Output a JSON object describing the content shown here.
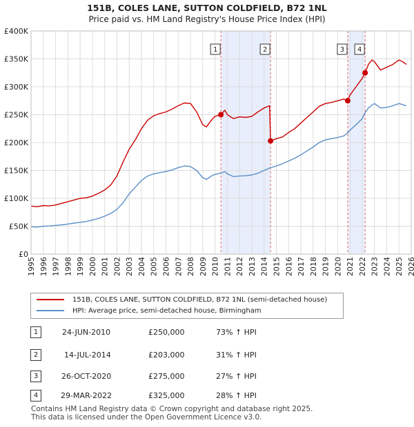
{
  "chart_data": {
    "type": "line",
    "title": "151B, COLES LANE, SUTTON COLDFIELD, B72 1NL",
    "subtitle": "Price paid vs. HM Land Registry's House Price Index (HPI)",
    "xlabel": "",
    "ylabel": "",
    "xlim": [
      1995,
      2026
    ],
    "ylim": [
      0,
      400000
    ],
    "x_ticks": [
      "1995",
      "1996",
      "1997",
      "1998",
      "1999",
      "2000",
      "2001",
      "2002",
      "2003",
      "2004",
      "2005",
      "2006",
      "2007",
      "2008",
      "2009",
      "2010",
      "2011",
      "2012",
      "2013",
      "2014",
      "2015",
      "2016",
      "2017",
      "2018",
      "2019",
      "2020",
      "2021",
      "2022",
      "2023",
      "2024",
      "2025",
      "2026"
    ],
    "y_ticks": [
      {
        "value": 0,
        "label": "£0"
      },
      {
        "value": 50000,
        "label": "£50K"
      },
      {
        "value": 100000,
        "label": "£100K"
      },
      {
        "value": 150000,
        "label": "£150K"
      },
      {
        "value": 200000,
        "label": "£200K"
      },
      {
        "value": 250000,
        "label": "£250K"
      },
      {
        "value": 300000,
        "label": "£300K"
      },
      {
        "value": 350000,
        "label": "£350K"
      },
      {
        "value": 400000,
        "label": "£400K"
      }
    ],
    "grid": true,
    "series": [
      {
        "name": "151B, COLES LANE, SUTTON COLDFIELD, B72 1NL (semi-detached house)",
        "color": "#cc0000",
        "points": [
          [
            1995.0,
            86000
          ],
          [
            1995.5,
            85000
          ],
          [
            1996.0,
            87000
          ],
          [
            1996.5,
            86500
          ],
          [
            1997.0,
            88000
          ],
          [
            1997.5,
            91000
          ],
          [
            1998.0,
            94000
          ],
          [
            1998.5,
            97000
          ],
          [
            1999.0,
            100000
          ],
          [
            1999.5,
            101000
          ],
          [
            2000.0,
            104000
          ],
          [
            2000.5,
            109000
          ],
          [
            2001.0,
            115000
          ],
          [
            2001.5,
            124000
          ],
          [
            2002.0,
            140000
          ],
          [
            2002.5,
            165000
          ],
          [
            2003.0,
            188000
          ],
          [
            2003.5,
            205000
          ],
          [
            2004.0,
            225000
          ],
          [
            2004.5,
            240000
          ],
          [
            2005.0,
            248000
          ],
          [
            2005.5,
            252000
          ],
          [
            2006.0,
            255000
          ],
          [
            2006.5,
            260000
          ],
          [
            2007.0,
            266000
          ],
          [
            2007.5,
            271000
          ],
          [
            2008.0,
            270000
          ],
          [
            2008.5,
            255000
          ],
          [
            2009.0,
            232000
          ],
          [
            2009.3,
            228000
          ],
          [
            2009.7,
            240000
          ],
          [
            2010.0,
            247000
          ],
          [
            2010.48,
            250000
          ],
          [
            2010.8,
            258000
          ],
          [
            2011.0,
            250000
          ],
          [
            2011.5,
            243000
          ],
          [
            2012.0,
            246000
          ],
          [
            2012.5,
            245000
          ],
          [
            2013.0,
            247000
          ],
          [
            2013.5,
            255000
          ],
          [
            2014.0,
            262000
          ],
          [
            2014.45,
            266000
          ],
          [
            2014.53,
            203000
          ],
          [
            2015.0,
            207000
          ],
          [
            2015.5,
            210000
          ],
          [
            2016.0,
            218000
          ],
          [
            2016.5,
            225000
          ],
          [
            2017.0,
            235000
          ],
          [
            2017.5,
            245000
          ],
          [
            2018.0,
            255000
          ],
          [
            2018.5,
            265000
          ],
          [
            2019.0,
            270000
          ],
          [
            2019.5,
            272000
          ],
          [
            2020.0,
            275000
          ],
          [
            2020.5,
            278000
          ],
          [
            2020.82,
            275000
          ],
          [
            2021.0,
            285000
          ],
          [
            2021.5,
            300000
          ],
          [
            2022.0,
            315000
          ],
          [
            2022.24,
            325000
          ],
          [
            2022.5,
            340000
          ],
          [
            2022.8,
            348000
          ],
          [
            2023.0,
            345000
          ],
          [
            2023.5,
            330000
          ],
          [
            2024.0,
            335000
          ],
          [
            2024.5,
            340000
          ],
          [
            2025.0,
            348000
          ],
          [
            2025.3,
            345000
          ],
          [
            2025.6,
            340000
          ]
        ]
      },
      {
        "name": "HPI: Average price, semi-detached house, Birmingham",
        "color": "#5b8fc9",
        "points": [
          [
            1995.0,
            49000
          ],
          [
            1995.5,
            48500
          ],
          [
            1996.0,
            50000
          ],
          [
            1996.5,
            50500
          ],
          [
            1997.0,
            51500
          ],
          [
            1997.5,
            52500
          ],
          [
            1998.0,
            54000
          ],
          [
            1998.5,
            55500
          ],
          [
            1999.0,
            57000
          ],
          [
            1999.5,
            58500
          ],
          [
            2000.0,
            61000
          ],
          [
            2000.5,
            64000
          ],
          [
            2001.0,
            68000
          ],
          [
            2001.5,
            73000
          ],
          [
            2002.0,
            80000
          ],
          [
            2002.5,
            92000
          ],
          [
            2003.0,
            108000
          ],
          [
            2003.5,
            120000
          ],
          [
            2004.0,
            132000
          ],
          [
            2004.5,
            140000
          ],
          [
            2005.0,
            144000
          ],
          [
            2005.5,
            146000
          ],
          [
            2006.0,
            148000
          ],
          [
            2006.5,
            151000
          ],
          [
            2007.0,
            155000
          ],
          [
            2007.5,
            158000
          ],
          [
            2008.0,
            157000
          ],
          [
            2008.5,
            150000
          ],
          [
            2009.0,
            137000
          ],
          [
            2009.3,
            134000
          ],
          [
            2009.7,
            140000
          ],
          [
            2010.0,
            143000
          ],
          [
            2010.48,
            145000
          ],
          [
            2010.8,
            148000
          ],
          [
            2011.0,
            144000
          ],
          [
            2011.5,
            139000
          ],
          [
            2012.0,
            140000
          ],
          [
            2012.5,
            140500
          ],
          [
            2013.0,
            142000
          ],
          [
            2013.5,
            145000
          ],
          [
            2014.0,
            150000
          ],
          [
            2014.53,
            155000
          ],
          [
            2015.0,
            158000
          ],
          [
            2015.5,
            162000
          ],
          [
            2016.0,
            167000
          ],
          [
            2016.5,
            172000
          ],
          [
            2017.0,
            178000
          ],
          [
            2017.5,
            185000
          ],
          [
            2018.0,
            192000
          ],
          [
            2018.5,
            200000
          ],
          [
            2019.0,
            205000
          ],
          [
            2019.5,
            207000
          ],
          [
            2020.0,
            209000
          ],
          [
            2020.5,
            212000
          ],
          [
            2020.82,
            217000
          ],
          [
            2021.0,
            222000
          ],
          [
            2021.5,
            232000
          ],
          [
            2022.0,
            243000
          ],
          [
            2022.24,
            254000
          ],
          [
            2022.5,
            262000
          ],
          [
            2022.8,
            267000
          ],
          [
            2023.0,
            270000
          ],
          [
            2023.5,
            262000
          ],
          [
            2024.0,
            263000
          ],
          [
            2024.5,
            266000
          ],
          [
            2025.0,
            270000
          ],
          [
            2025.3,
            268000
          ],
          [
            2025.6,
            266000
          ]
        ]
      }
    ],
    "sales": [
      {
        "label": "1",
        "x": 2010.48,
        "price": 250000,
        "date": "24-JUN-2010",
        "price_text": "£250,000",
        "hpi": "73% ↑ HPI"
      },
      {
        "label": "2",
        "x": 2014.53,
        "price": 203000,
        "date": "14-JUL-2014",
        "price_text": "£203,000",
        "hpi": "31% ↑ HPI"
      },
      {
        "label": "3",
        "x": 2020.82,
        "price": 275000,
        "date": "26-OCT-2020",
        "price_text": "£275,000",
        "hpi": "27% ↑ HPI"
      },
      {
        "label": "4",
        "x": 2022.24,
        "price": 325000,
        "date": "29-MAR-2022",
        "price_text": "£325,000",
        "hpi": "28% ↑ HPI"
      }
    ],
    "shaded_ranges": [
      [
        2010.48,
        2014.53
      ],
      [
        2020.82,
        2022.24
      ]
    ],
    "legend_position": "below"
  },
  "footer": {
    "line1": "Contains HM Land Registry data © Crown copyright and database right 2025.",
    "line2": "This data is licensed under the Open Government Licence v3.0."
  }
}
